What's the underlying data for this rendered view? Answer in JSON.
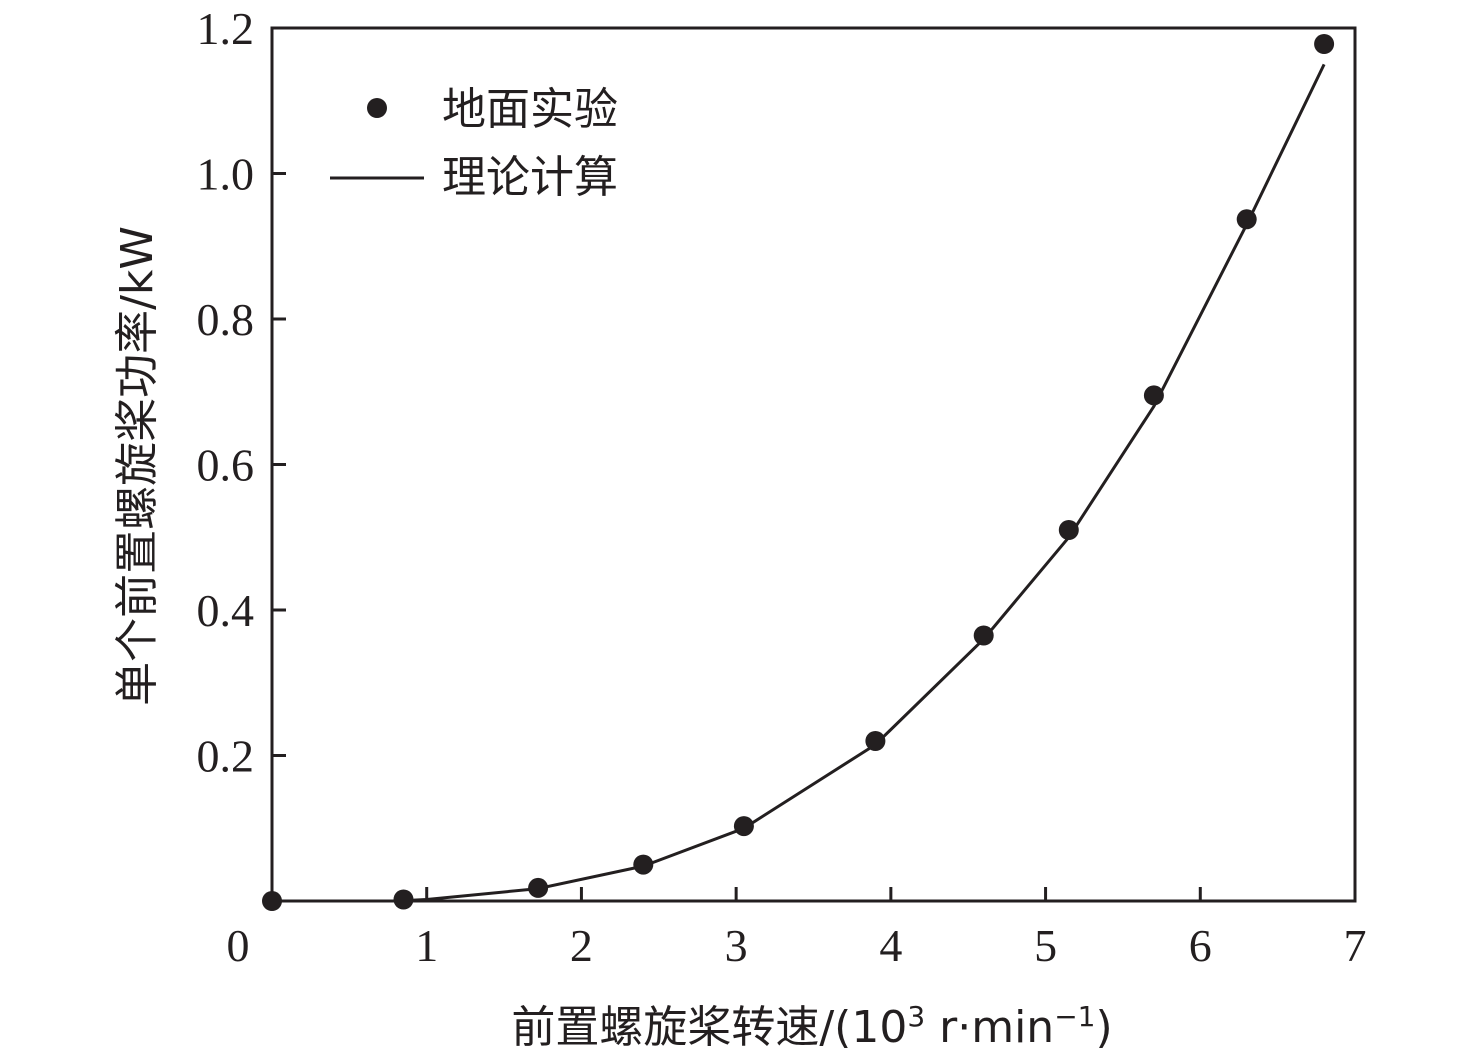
{
  "chart_data": {
    "type": "scatter",
    "title": "",
    "xlabel": "前置螺旋桨转速/(10³ r·min⁻¹)",
    "xlabel_parts": {
      "main": "前置螺旋桨转速/(10",
      "exp1": "3",
      "mid": " r·min",
      "exp2": "−1",
      "end": ")"
    },
    "ylabel": "单个前置螺旋桨功率/kW",
    "xlim": [
      0,
      7
    ],
    "ylim": [
      0,
      1.2
    ],
    "x_ticks": [
      0,
      1,
      2,
      3,
      4,
      5,
      6,
      7
    ],
    "x_tick_labels": [
      "0",
      "1",
      "2",
      "3",
      "4",
      "5",
      "6",
      "7"
    ],
    "y_ticks": [
      0.2,
      0.4,
      0.6,
      0.8,
      1.0,
      1.2
    ],
    "y_tick_labels": [
      "0.2",
      "0.4",
      "0.6",
      "0.8",
      "1.0",
      "1.2"
    ],
    "grid": false,
    "legend_position": "top-left",
    "series": [
      {
        "name": "地面实验",
        "kind": "scatter",
        "color": "#231f20",
        "points": [
          [
            0,
            0.0
          ],
          [
            0.85,
            0.002
          ],
          [
            1.72,
            0.018
          ],
          [
            2.4,
            0.05
          ],
          [
            3.05,
            0.103
          ],
          [
            3.9,
            0.22
          ],
          [
            4.6,
            0.365
          ],
          [
            5.15,
            0.51
          ],
          [
            5.7,
            0.695
          ],
          [
            6.3,
            0.937
          ],
          [
            6.8,
            1.178
          ]
        ]
      },
      {
        "name": "理论计算",
        "kind": "line",
        "color": "#231f20",
        "points": [
          [
            0.8,
            0.0
          ],
          [
            1.0,
            0.002
          ],
          [
            1.72,
            0.017
          ],
          [
            2.4,
            0.048
          ],
          [
            3.05,
            0.1
          ],
          [
            3.9,
            0.215
          ],
          [
            4.6,
            0.36
          ],
          [
            5.15,
            0.5
          ],
          [
            5.7,
            0.68
          ],
          [
            6.3,
            0.93
          ],
          [
            6.8,
            1.15
          ]
        ]
      }
    ]
  }
}
